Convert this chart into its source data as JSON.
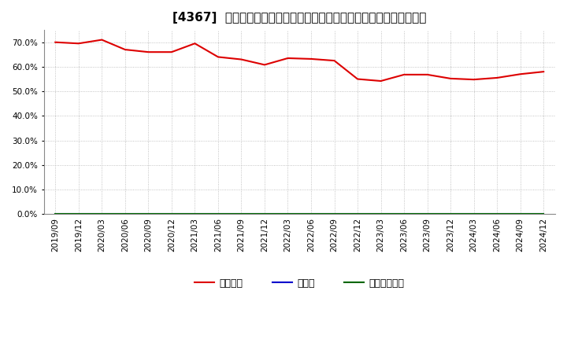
{
  "title": "[4367]  自己資本、のれん、繰延税金資産の総資産に対する比率の推移",
  "x_labels": [
    "2019/09",
    "2019/12",
    "2020/03",
    "2020/06",
    "2020/09",
    "2020/12",
    "2021/03",
    "2021/06",
    "2021/09",
    "2021/12",
    "2022/03",
    "2022/06",
    "2022/09",
    "2022/12",
    "2023/03",
    "2023/06",
    "2023/09",
    "2023/12",
    "2024/03",
    "2024/06",
    "2024/09",
    "2024/12"
  ],
  "equity_values": [
    70.0,
    69.5,
    71.0,
    67.0,
    66.0,
    66.0,
    69.5,
    64.0,
    63.0,
    60.8,
    63.5,
    63.2,
    62.5,
    55.0,
    54.2,
    56.8,
    56.8,
    55.2,
    54.8,
    55.5,
    57.0,
    58.0
  ],
  "noren_values": [
    0,
    0,
    0,
    0,
    0,
    0,
    0,
    0,
    0,
    0,
    0,
    0,
    0,
    0,
    0,
    0,
    0,
    0,
    0,
    0,
    0,
    0
  ],
  "deferred_values": [
    0,
    0,
    0,
    0,
    0,
    0,
    0,
    0,
    0,
    0,
    0,
    0,
    0,
    0,
    0,
    0,
    0,
    0,
    0,
    0,
    0,
    0
  ],
  "equity_color": "#dd0000",
  "noren_color": "#0000cc",
  "deferred_color": "#006600",
  "background_color": "#ffffff",
  "plot_bg_color": "#ffffff",
  "grid_color": "#aaaaaa",
  "ylim": [
    0,
    75
  ],
  "yticks": [
    0,
    10,
    20,
    30,
    40,
    50,
    60,
    70
  ],
  "legend_labels": [
    "自己資本",
    "のれん",
    "繰延税金資産"
  ],
  "title_fontsize": 11,
  "tick_fontsize": 7.5,
  "legend_fontsize": 9
}
